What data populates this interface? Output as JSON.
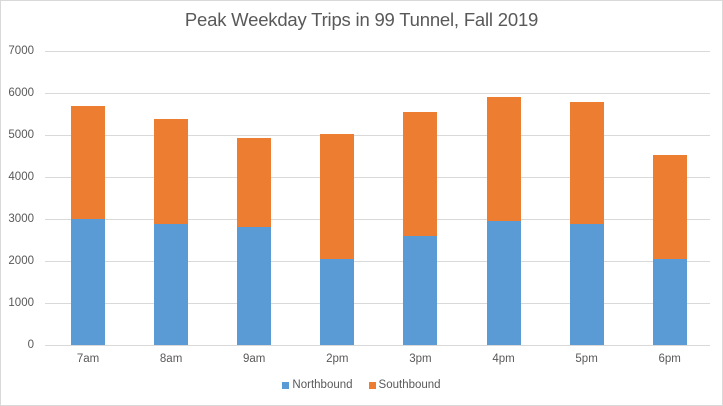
{
  "chart_data": {
    "type": "bar",
    "stacked": true,
    "title": "Peak Weekday Trips in 99 Tunnel, Fall 2019",
    "xlabel": "",
    "ylabel": "",
    "categories": [
      "7am",
      "8am",
      "9am",
      "2pm",
      "3pm",
      "4pm",
      "5pm",
      "6pm"
    ],
    "series": [
      {
        "name": "Northbound",
        "color": "#5b9bd5",
        "values": [
          3010,
          2880,
          2810,
          2050,
          2600,
          2950,
          2880,
          2050
        ]
      },
      {
        "name": "Southbound",
        "color": "#ed7d31",
        "values": [
          2680,
          2510,
          2120,
          2970,
          2950,
          2950,
          2910,
          2470
        ]
      }
    ],
    "ylim": [
      0,
      7000
    ],
    "yticks": [
      0,
      1000,
      2000,
      3000,
      4000,
      5000,
      6000,
      7000
    ],
    "grid": true,
    "legend_position": "bottom"
  },
  "title": "Peak Weekday Trips in 99 Tunnel, Fall 2019",
  "yaxis": {
    "ticks": [
      "0",
      "1000",
      "2000",
      "3000",
      "4000",
      "5000",
      "6000",
      "7000"
    ]
  },
  "xaxis": {
    "labels": [
      "7am",
      "8am",
      "9am",
      "2pm",
      "3pm",
      "4pm",
      "5pm",
      "6pm"
    ]
  },
  "legend": [
    {
      "label": "Northbound",
      "color": "#5b9bd5"
    },
    {
      "label": "Southbound",
      "color": "#ed7d31"
    }
  ]
}
